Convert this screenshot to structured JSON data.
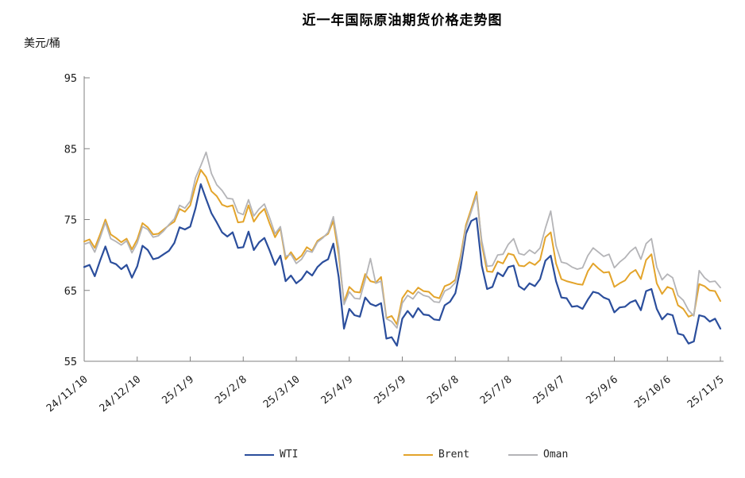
{
  "chart_data": {
    "type": "line",
    "title": "近一年国际原油期货价格走势图",
    "y_unit": "美元/桶",
    "xlabel": "",
    "ylabel": "美元/桶",
    "ylim": [
      55,
      95
    ],
    "y_ticks": [
      95,
      85,
      75,
      65,
      55
    ],
    "grid": false,
    "legend_position": "bottom",
    "x_tick_labels": [
      "24/11/10",
      "24/12/10",
      "25/1/9",
      "25/2/8",
      "25/3/10",
      "25/4/9",
      "25/5/9",
      "25/6/8",
      "25/7/8",
      "25/8/7",
      "25/9/6",
      "25/10/6",
      "25/11/5"
    ],
    "x_tick_interval_days": 30,
    "x_day_start": 0,
    "x_day_step": 3,
    "x_day_max": 360,
    "axis_color": "#808080",
    "text_color": "#1a1a1a",
    "series": [
      {
        "name": "WTI",
        "color": "#2B4E9C",
        "stroke_width": 2.2,
        "values": [
          68.3,
          68.6,
          67.0,
          69.2,
          71.2,
          69.0,
          68.7,
          68.0,
          68.6,
          66.8,
          68.4,
          71.3,
          70.7,
          69.4,
          69.6,
          70.1,
          70.6,
          71.7,
          73.9,
          73.6,
          74.0,
          76.6,
          80.0,
          77.9,
          75.9,
          74.6,
          73.2,
          72.6,
          73.2,
          71.0,
          71.1,
          73.3,
          70.7,
          71.8,
          72.4,
          70.6,
          68.6,
          69.9,
          66.3,
          67.1,
          66.0,
          66.6,
          67.7,
          67.1,
          68.3,
          69.0,
          69.4,
          71.6,
          66.9,
          59.6,
          62.4,
          61.5,
          61.3,
          64.0,
          63.1,
          62.8,
          63.2,
          58.2,
          58.4,
          57.2,
          61.0,
          62.1,
          61.2,
          62.5,
          61.6,
          61.5,
          60.9,
          60.8,
          62.9,
          63.4,
          64.6,
          68.2,
          73.0,
          74.8,
          75.2,
          68.5,
          65.2,
          65.5,
          67.5,
          67.0,
          68.3,
          68.5,
          65.6,
          65.1,
          66.0,
          65.6,
          66.6,
          69.2,
          69.9,
          66.3,
          64.0,
          63.9,
          62.7,
          62.8,
          62.4,
          63.7,
          64.8,
          64.6,
          64.0,
          63.7,
          61.9,
          62.6,
          62.7,
          63.3,
          63.6,
          62.2,
          64.9,
          65.2,
          62.4,
          60.9,
          61.7,
          61.5,
          58.9,
          58.7,
          57.5,
          57.8,
          61.5,
          61.3,
          60.6,
          61.0,
          59.6
        ]
      },
      {
        "name": "Brent",
        "color": "#E3A42B",
        "stroke_width": 2,
        "values": [
          71.9,
          72.2,
          71.0,
          72.9,
          75.0,
          72.9,
          72.4,
          71.8,
          72.3,
          70.8,
          72.2,
          74.5,
          73.9,
          72.9,
          73.0,
          73.6,
          74.2,
          74.7,
          76.5,
          76.1,
          77.0,
          79.8,
          82.0,
          81.0,
          79.0,
          78.3,
          77.1,
          76.8,
          77.0,
          74.6,
          74.7,
          77.0,
          74.7,
          75.8,
          76.5,
          74.4,
          72.5,
          73.8,
          69.4,
          70.4,
          69.3,
          69.9,
          71.1,
          70.6,
          72.0,
          72.5,
          73.0,
          74.8,
          70.1,
          63.3,
          65.5,
          64.8,
          64.7,
          67.3,
          66.3,
          66.1,
          66.9,
          61.1,
          61.4,
          60.2,
          63.9,
          65.0,
          64.5,
          65.4,
          64.9,
          64.8,
          64.1,
          63.9,
          65.6,
          65.9,
          66.5,
          69.8,
          74.2,
          76.5,
          78.9,
          71.5,
          67.7,
          67.6,
          69.1,
          68.8,
          70.2,
          70.0,
          68.5,
          68.4,
          69.0,
          68.6,
          69.3,
          72.5,
          73.2,
          68.8,
          66.6,
          66.3,
          66.1,
          65.9,
          65.8,
          67.7,
          68.8,
          68.1,
          67.5,
          67.6,
          65.5,
          66.0,
          66.4,
          67.4,
          67.9,
          66.6,
          69.3,
          70.1,
          66.0,
          64.5,
          65.5,
          65.2,
          62.9,
          62.4,
          61.3,
          61.6,
          65.9,
          65.6,
          65.0,
          64.9,
          63.5
        ]
      },
      {
        "name": "Oman",
        "color": "#B4B4B7",
        "stroke_width": 1.8,
        "values": [
          71.5,
          71.8,
          70.4,
          72.4,
          74.6,
          72.3,
          71.9,
          71.4,
          72.0,
          70.3,
          71.7,
          74.0,
          73.6,
          72.5,
          72.7,
          73.4,
          74.3,
          75.1,
          77.0,
          76.6,
          77.6,
          80.9,
          82.6,
          84.5,
          81.5,
          79.9,
          79.1,
          78.0,
          77.9,
          76.0,
          75.7,
          77.8,
          75.5,
          76.5,
          77.2,
          75.2,
          73.0,
          74.0,
          69.8,
          70.1,
          68.8,
          69.4,
          70.6,
          70.4,
          71.8,
          72.4,
          73.2,
          75.4,
          71.0,
          63.0,
          64.8,
          63.9,
          63.8,
          66.5,
          69.5,
          66.0,
          66.3,
          61.0,
          60.6,
          59.7,
          63.2,
          64.3,
          63.8,
          64.8,
          64.3,
          64.1,
          63.4,
          63.3,
          64.9,
          65.3,
          66.1,
          69.3,
          73.8,
          76.1,
          78.4,
          72.0,
          68.4,
          68.5,
          70.0,
          70.1,
          71.5,
          72.3,
          70.2,
          70.0,
          70.7,
          70.2,
          71.0,
          73.8,
          76.2,
          71.3,
          69.0,
          68.8,
          68.3,
          68.0,
          68.2,
          69.9,
          71.0,
          70.4,
          69.8,
          70.1,
          68.2,
          69.0,
          69.6,
          70.5,
          71.1,
          69.4,
          71.6,
          72.3,
          68.3,
          66.5,
          67.3,
          66.8,
          64.3,
          63.6,
          62.2,
          61.4,
          67.8,
          66.8,
          66.2,
          66.3,
          65.4
        ]
      }
    ]
  }
}
